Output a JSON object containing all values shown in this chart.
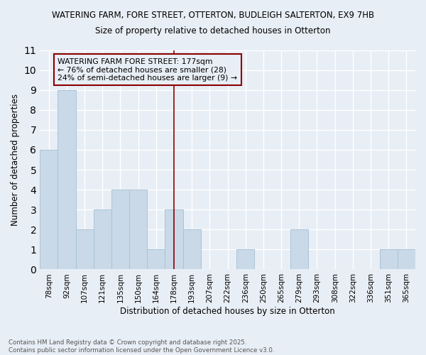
{
  "title1": "WATERING FARM, FORE STREET, OTTERTON, BUDLEIGH SALTERTON, EX9 7HB",
  "title2": "Size of property relative to detached houses in Otterton",
  "xlabel": "Distribution of detached houses by size in Otterton",
  "ylabel": "Number of detached properties",
  "categories": [
    "78sqm",
    "92sqm",
    "107sqm",
    "121sqm",
    "135sqm",
    "150sqm",
    "164sqm",
    "178sqm",
    "193sqm",
    "207sqm",
    "222sqm",
    "236sqm",
    "250sqm",
    "265sqm",
    "279sqm",
    "293sqm",
    "308sqm",
    "322sqm",
    "336sqm",
    "351sqm",
    "365sqm"
  ],
  "values": [
    6,
    9,
    2,
    3,
    4,
    4,
    1,
    3,
    2,
    0,
    0,
    1,
    0,
    0,
    2,
    0,
    0,
    0,
    0,
    1,
    1
  ],
  "bar_color": "#c9d9e8",
  "bar_edge_color": "#a8c4d8",
  "vline_x": 7,
  "vline_color": "#8b0000",
  "annotation_line1": "WATERING FARM FORE STREET: 177sqm",
  "annotation_line2": "← 76% of detached houses are smaller (28)",
  "annotation_line3": "24% of semi-detached houses are larger (9) →",
  "annotation_box_color": "#8b0000",
  "ylim": [
    0,
    11
  ],
  "yticks": [
    0,
    1,
    2,
    3,
    4,
    5,
    6,
    7,
    8,
    9,
    10,
    11
  ],
  "footnote1": "Contains HM Land Registry data © Crown copyright and database right 2025.",
  "footnote2": "Contains public sector information licensed under the Open Government Licence v3.0.",
  "bg_color": "#e8eef5",
  "grid_color": "#ffffff"
}
